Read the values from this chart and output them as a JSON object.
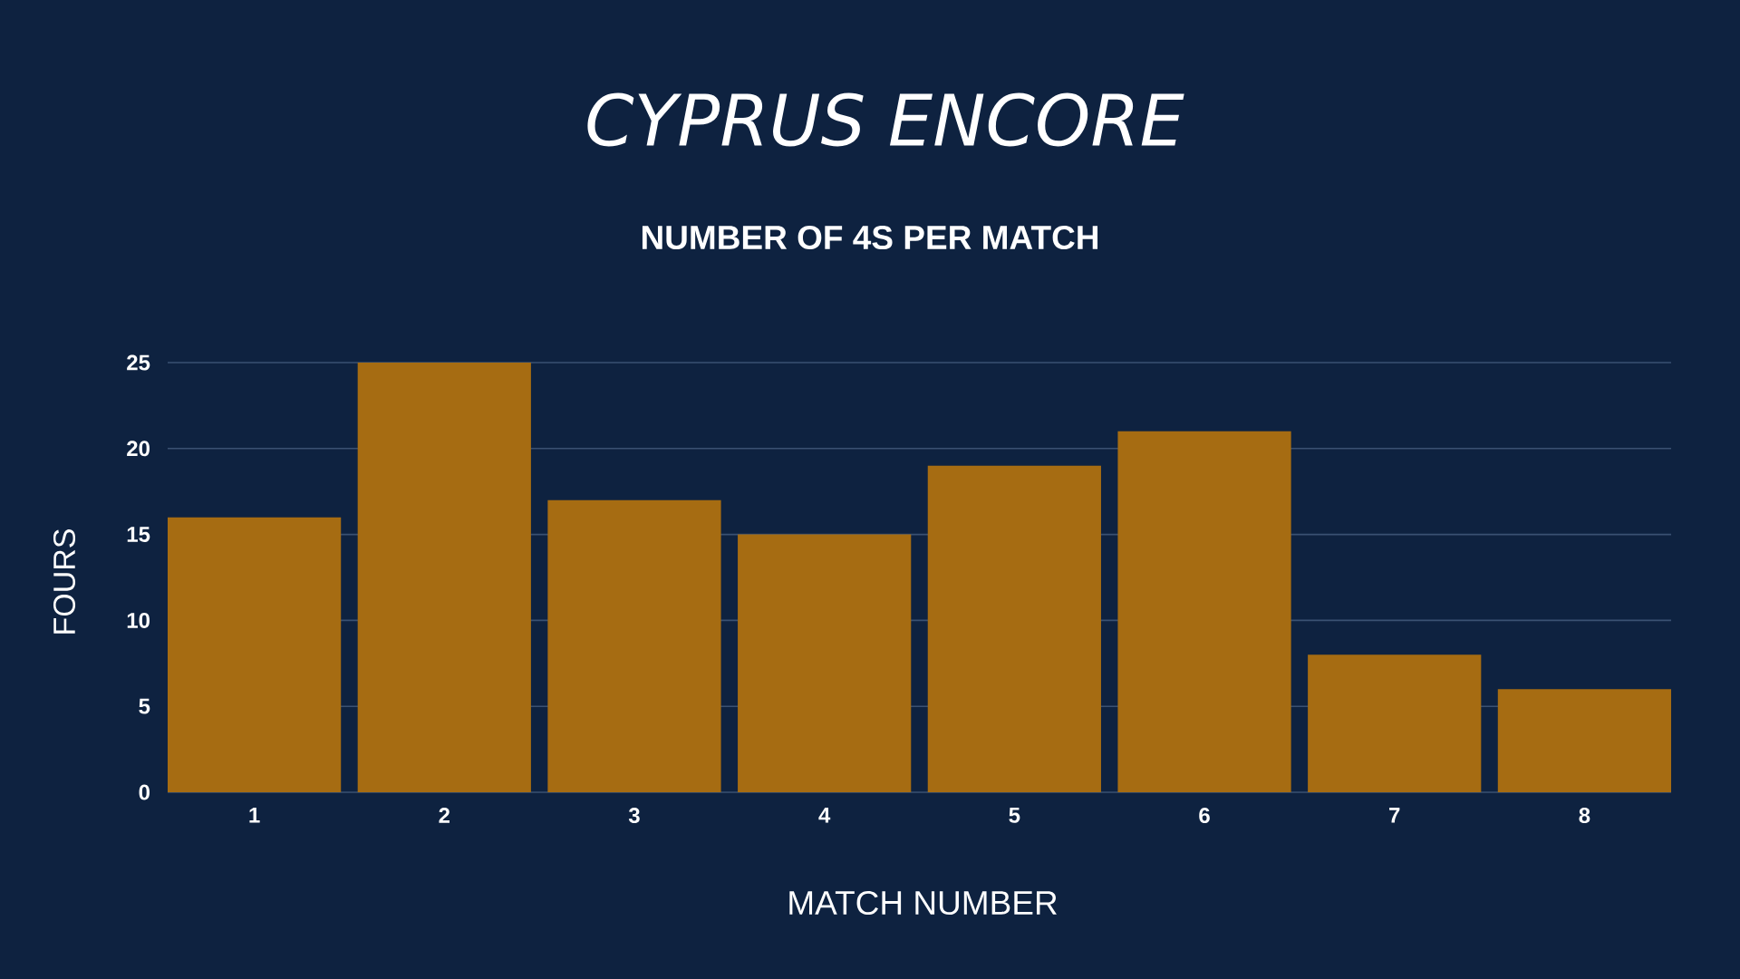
{
  "chart_data": {
    "type": "bar",
    "title": "CYPRUS ENCORE",
    "subtitle": "NUMBER OF 4S PER MATCH",
    "xlabel": "MATCH NUMBER",
    "ylabel": "FOURS",
    "categories": [
      "1",
      "2",
      "3",
      "4",
      "5",
      "6",
      "7",
      "8"
    ],
    "values": [
      16,
      25,
      17,
      15,
      19,
      21,
      8,
      6
    ],
    "color": "#a66c12",
    "ylim": [
      0,
      25
    ],
    "yticks": [
      0,
      5,
      10,
      15,
      20,
      25
    ],
    "grid": "y"
  }
}
